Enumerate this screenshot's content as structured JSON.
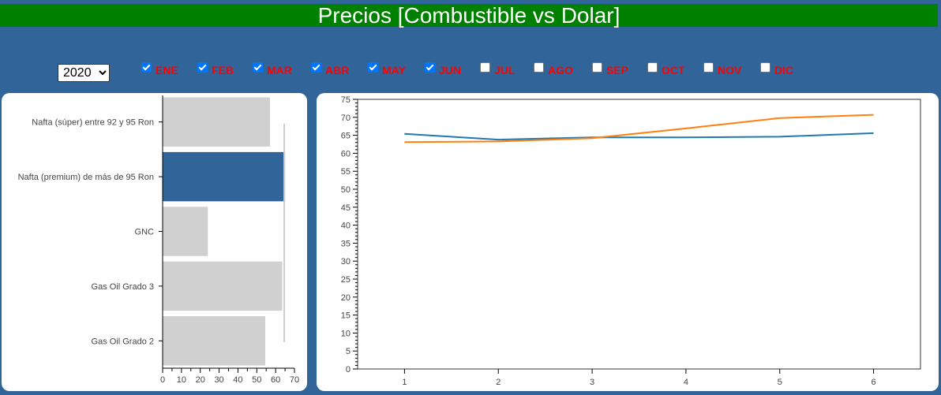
{
  "header": {
    "title": "Precios [Combustible vs Dolar]"
  },
  "year_select": {
    "value": "2020",
    "options": [
      "2020"
    ]
  },
  "months": [
    {
      "label": "ENE",
      "checked": true
    },
    {
      "label": "FEB",
      "checked": true
    },
    {
      "label": "MAR",
      "checked": true
    },
    {
      "label": "ABR",
      "checked": true
    },
    {
      "label": "MAY",
      "checked": true
    },
    {
      "label": "JUN",
      "checked": true
    },
    {
      "label": "JUL",
      "checked": false
    },
    {
      "label": "AGO",
      "checked": false
    },
    {
      "label": "SEP",
      "checked": false
    },
    {
      "label": "OCT",
      "checked": false
    },
    {
      "label": "NOV",
      "checked": false
    },
    {
      "label": "DIC",
      "checked": false
    }
  ],
  "colors": {
    "background": "#31659a",
    "header": "#008000",
    "month_label": "#ff0000",
    "bar_default": "#d0d0d0",
    "bar_selected": "#31659a",
    "line_1": "#1f77b4",
    "line_2": "#ff7f0e"
  },
  "chart_data": [
    {
      "type": "bar",
      "orientation": "horizontal",
      "categories": [
        "Nafta (súper) entre 92 y 95 Ron",
        "Nafta (premium) de más de 95 Ron",
        "GNC",
        "Gas Oil Grado 3",
        "Gas Oil Grado 2"
      ],
      "values": [
        57,
        65,
        24,
        63.5,
        54.5
      ],
      "selected_index": 1,
      "reference_value": 65,
      "xlim": [
        0,
        70
      ],
      "xticks": [
        0,
        10,
        20,
        30,
        40,
        50,
        60,
        70
      ]
    },
    {
      "type": "line",
      "x": [
        1,
        2,
        3,
        4,
        5,
        6
      ],
      "series": [
        {
          "values": [
            65.4,
            63.8,
            64.4,
            64.4,
            64.6,
            65.6
          ],
          "color": "#1f77b4"
        },
        {
          "values": [
            63.1,
            63.3,
            64.2,
            66.9,
            69.8,
            70.7
          ],
          "color": "#ff7f0e"
        }
      ],
      "xlim": [
        0.5,
        6.5
      ],
      "ylim": [
        0,
        75
      ],
      "xticks": [
        1,
        2,
        3,
        4,
        5,
        6
      ],
      "yticks": [
        0,
        5,
        10,
        15,
        20,
        25,
        30,
        35,
        40,
        45,
        50,
        55,
        60,
        65,
        70,
        75
      ]
    }
  ]
}
